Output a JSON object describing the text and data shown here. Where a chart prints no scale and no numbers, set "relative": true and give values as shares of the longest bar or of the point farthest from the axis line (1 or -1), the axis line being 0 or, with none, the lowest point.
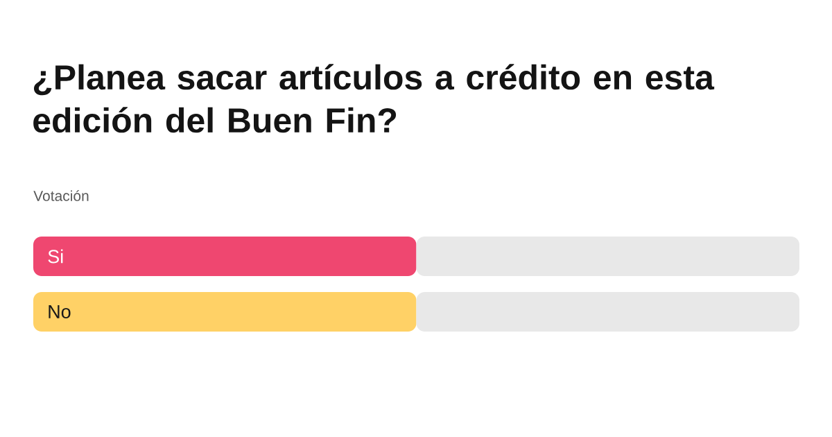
{
  "chart_data": {
    "type": "bar",
    "orientation": "horizontal",
    "stacked": true,
    "relative": true,
    "title": "¿Planea sacar artículos a crédito en esta edición del Buen Fin?",
    "subtitle": "Votación",
    "categories": [
      "Si",
      "No"
    ],
    "series": [
      {
        "colors": [
          "#ef4770",
          "#ffd166"
        ],
        "values": [
          0.5,
          0.5
        ]
      },
      {
        "color": "#e8e8e8",
        "values": [
          0.5,
          0.5
        ]
      }
    ]
  }
}
